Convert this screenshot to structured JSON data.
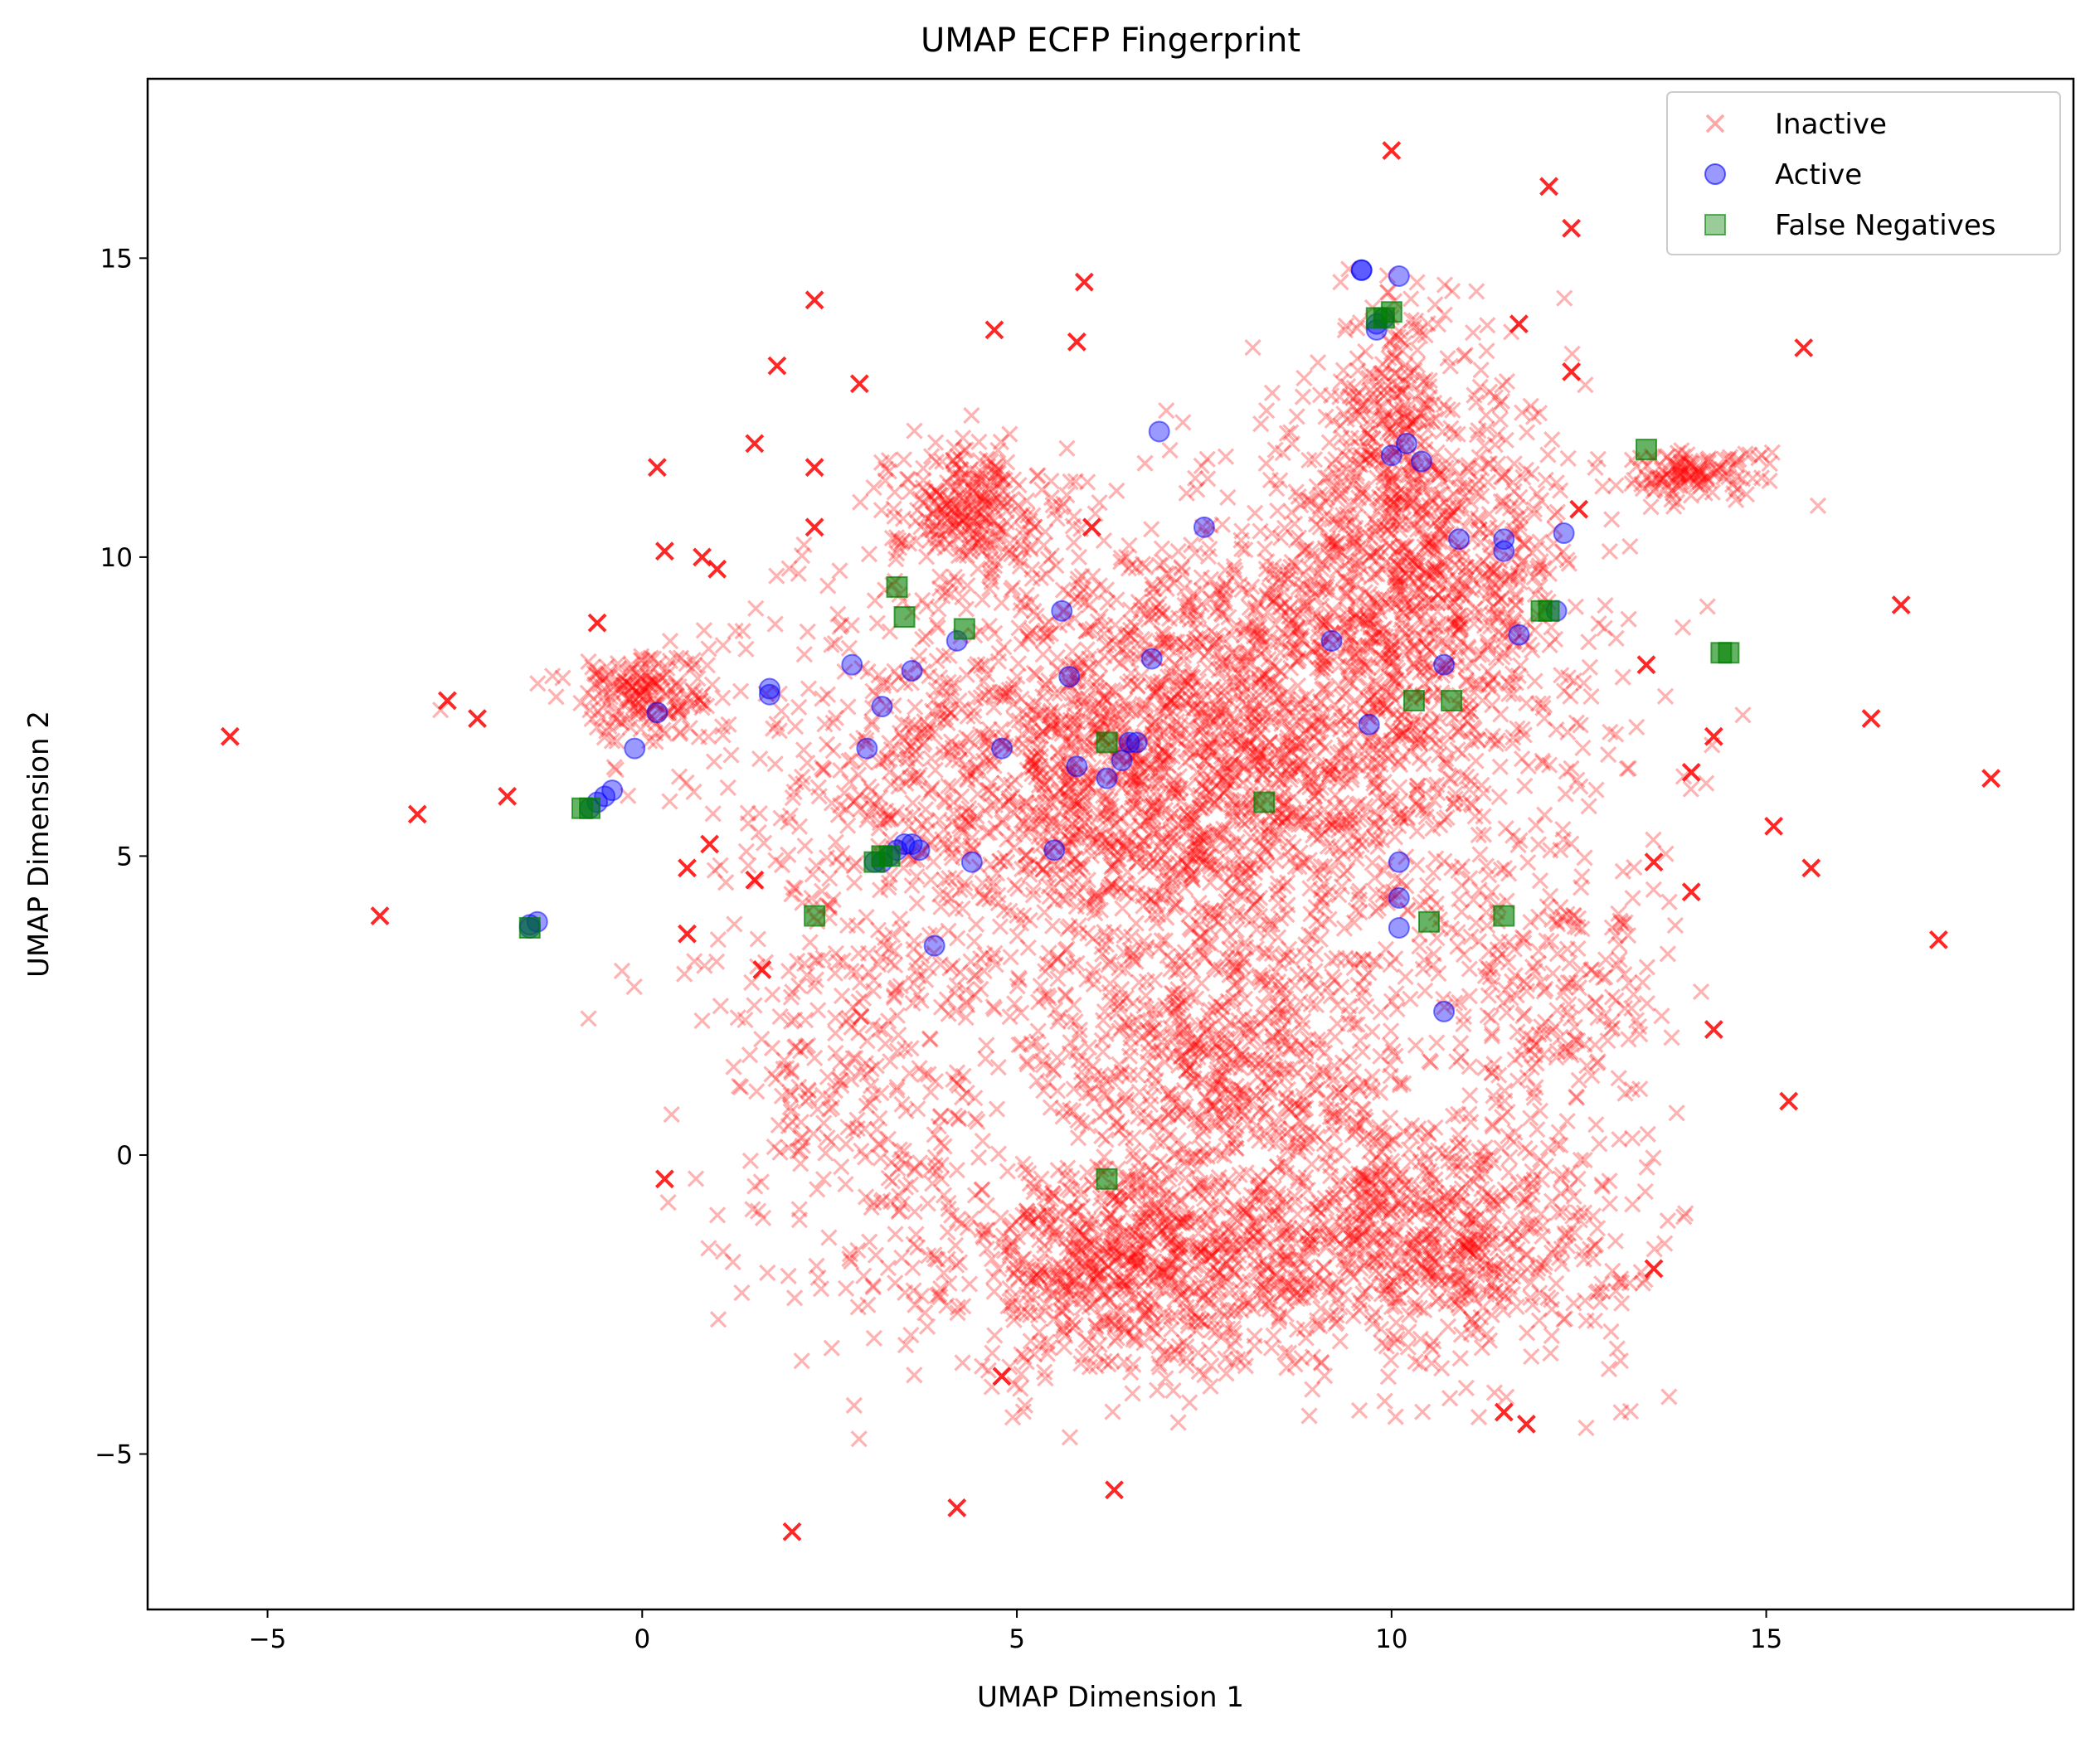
{
  "chart_data": {
    "type": "scatter",
    "title": "UMAP ECFP Fingerprint",
    "xlabel": "UMAP Dimension 1",
    "ylabel": "UMAP Dimension 2",
    "xlim": [
      -6.6,
      19.1
    ],
    "ylim": [
      -7.6,
      18.0
    ],
    "xticks": [
      -5,
      0,
      5,
      10,
      15
    ],
    "yticks": [
      -5,
      0,
      5,
      10,
      15
    ],
    "xtick_labels": [
      "−5",
      "0",
      "5",
      "10",
      "15"
    ],
    "ytick_labels": [
      "−5",
      "0",
      "5",
      "10",
      "15"
    ],
    "grid": false,
    "legend_position": "top-right",
    "series": [
      {
        "name": "Inactive",
        "marker": "x",
        "color": "#ff0000",
        "alpha": 0.3,
        "clusters": [
          {
            "cx": 7.0,
            "cy": 6.5,
            "sx": 2.4,
            "sy": 2.0,
            "n": 2600
          },
          {
            "cx": 10.3,
            "cy": 9.8,
            "sx": 1.1,
            "sy": 1.6,
            "n": 900
          },
          {
            "cx": 6.5,
            "cy": -1.9,
            "sx": 1.1,
            "sy": 0.9,
            "n": 700
          },
          {
            "cx": 10.2,
            "cy": -1.3,
            "sx": 1.5,
            "sy": 1.1,
            "n": 900
          },
          {
            "cx": 4.3,
            "cy": 10.9,
            "sx": 0.5,
            "sy": 0.5,
            "n": 250
          },
          {
            "cx": 0.0,
            "cy": 7.7,
            "sx": 0.5,
            "sy": 0.4,
            "n": 180
          },
          {
            "cx": 14.0,
            "cy": 11.4,
            "sx": 0.5,
            "sy": 0.2,
            "n": 120
          },
          {
            "cx": 7.8,
            "cy": 1.5,
            "sx": 1.2,
            "sy": 1.0,
            "n": 500
          },
          {
            "cx": 3.0,
            "cy": 1.0,
            "sx": 1.0,
            "sy": 2.0,
            "n": 350
          },
          {
            "cx": 12.2,
            "cy": 2.5,
            "sx": 0.8,
            "sy": 1.0,
            "n": 200
          },
          {
            "cx": 10.0,
            "cy": 12.5,
            "sx": 0.4,
            "sy": 1.0,
            "n": 150
          }
        ],
        "outliers": [
          [
            -5.5,
            7.0
          ],
          [
            -3.5,
            4.0
          ],
          [
            -3.0,
            5.7
          ],
          [
            -2.6,
            7.6
          ],
          [
            -2.2,
            7.3
          ],
          [
            -1.8,
            6.0
          ],
          [
            0.3,
            -0.4
          ],
          [
            0.6,
            3.7
          ],
          [
            0.6,
            4.8
          ],
          [
            0.9,
            5.2
          ],
          [
            1.5,
            4.6
          ],
          [
            1.5,
            11.9
          ],
          [
            1.6,
            3.1
          ],
          [
            2.0,
            -6.3
          ],
          [
            1.8,
            13.2
          ],
          [
            2.3,
            14.3
          ],
          [
            2.3,
            11.5
          ],
          [
            2.3,
            10.5
          ],
          [
            2.9,
            12.9
          ],
          [
            4.2,
            -5.9
          ],
          [
            4.7,
            13.8
          ],
          [
            5.8,
            13.6
          ],
          [
            5.9,
            14.6
          ],
          [
            6.0,
            10.5
          ],
          [
            6.3,
            -5.6
          ],
          [
            10.0,
            16.8
          ],
          [
            11.7,
            13.9
          ],
          [
            12.1,
            16.2
          ],
          [
            12.4,
            15.5
          ],
          [
            12.4,
            13.1
          ],
          [
            12.5,
            10.8
          ],
          [
            13.5,
            4.9
          ],
          [
            13.5,
            -1.9
          ],
          [
            14.0,
            6.4
          ],
          [
            14.0,
            4.4
          ],
          [
            14.3,
            7.0
          ],
          [
            15.1,
            5.5
          ],
          [
            15.3,
            0.9
          ],
          [
            15.5,
            13.5
          ],
          [
            15.6,
            4.8
          ],
          [
            16.4,
            7.3
          ],
          [
            16.8,
            9.2
          ],
          [
            17.3,
            3.6
          ],
          [
            18.0,
            6.3
          ],
          [
            11.5,
            -4.3
          ],
          [
            11.8,
            -4.5
          ],
          [
            4.8,
            -3.7
          ],
          [
            13.4,
            8.2
          ],
          [
            14.3,
            2.1
          ],
          [
            1.0,
            9.8
          ],
          [
            0.8,
            10.0
          ],
          [
            -0.6,
            8.9
          ],
          [
            0.2,
            11.5
          ],
          [
            0.3,
            10.1
          ]
        ]
      },
      {
        "name": "Active",
        "marker": "o",
        "color": "#0000ff",
        "alpha": 0.4,
        "points": [
          [
            9.6,
            14.8
          ],
          [
            9.6,
            14.8
          ],
          [
            10.1,
            14.7
          ],
          [
            9.8,
            13.9
          ],
          [
            9.8,
            13.8
          ],
          [
            9.9,
            14.0
          ],
          [
            -1.5,
            3.8
          ],
          [
            -1.4,
            3.9
          ],
          [
            -1.5,
            3.85
          ],
          [
            -0.7,
            5.8
          ],
          [
            -0.6,
            5.9
          ],
          [
            -0.4,
            6.1
          ],
          [
            -0.5,
            6.0
          ],
          [
            -0.1,
            6.8
          ],
          [
            0.2,
            7.4
          ],
          [
            1.7,
            7.8
          ],
          [
            1.7,
            7.7
          ],
          [
            2.8,
            8.2
          ],
          [
            3.0,
            6.8
          ],
          [
            3.2,
            7.5
          ],
          [
            3.6,
            8.1
          ],
          [
            3.1,
            4.9
          ],
          [
            3.3,
            5.0
          ],
          [
            3.5,
            5.2
          ],
          [
            3.4,
            5.1
          ],
          [
            3.6,
            5.2
          ],
          [
            3.7,
            5.1
          ],
          [
            3.2,
            4.9
          ],
          [
            3.9,
            3.5
          ],
          [
            4.2,
            8.6
          ],
          [
            4.4,
            4.9
          ],
          [
            4.8,
            6.8
          ],
          [
            5.5,
            5.1
          ],
          [
            5.6,
            9.1
          ],
          [
            5.7,
            8.0
          ],
          [
            5.8,
            6.5
          ],
          [
            6.2,
            6.3
          ],
          [
            6.4,
            6.6
          ],
          [
            6.5,
            6.9
          ],
          [
            6.6,
            6.9
          ],
          [
            6.8,
            8.3
          ],
          [
            6.9,
            12.1
          ],
          [
            7.5,
            10.5
          ],
          [
            9.2,
            8.6
          ],
          [
            9.7,
            7.2
          ],
          [
            10.0,
            11.7
          ],
          [
            10.1,
            4.9
          ],
          [
            10.1,
            4.3
          ],
          [
            10.1,
            3.8
          ],
          [
            10.2,
            11.9
          ],
          [
            10.4,
            11.6
          ],
          [
            10.7,
            8.2
          ],
          [
            10.7,
            2.4
          ],
          [
            10.9,
            10.3
          ],
          [
            11.5,
            10.1
          ],
          [
            11.5,
            10.3
          ],
          [
            11.7,
            8.7
          ],
          [
            12.3,
            10.4
          ],
          [
            12.2,
            9.1
          ]
        ]
      },
      {
        "name": "False Negatives",
        "marker": "s",
        "color": "#008000",
        "alpha": 0.4,
        "points": [
          [
            -1.5,
            3.8
          ],
          [
            -0.8,
            5.8
          ],
          [
            -0.7,
            5.8
          ],
          [
            2.3,
            4.0
          ],
          [
            3.1,
            4.9
          ],
          [
            3.2,
            5.0
          ],
          [
            3.3,
            5.0
          ],
          [
            3.4,
            9.5
          ],
          [
            3.5,
            9.0
          ],
          [
            4.3,
            8.8
          ],
          [
            6.2,
            6.9
          ],
          [
            6.2,
            -0.4
          ],
          [
            8.3,
            5.9
          ],
          [
            9.8,
            14.0
          ],
          [
            9.9,
            14.0
          ],
          [
            10.0,
            14.1
          ],
          [
            10.3,
            7.6
          ],
          [
            10.5,
            3.9
          ],
          [
            10.8,
            7.6
          ],
          [
            11.5,
            4.0
          ],
          [
            12.0,
            9.1
          ],
          [
            12.1,
            9.1
          ],
          [
            13.4,
            11.8
          ],
          [
            14.5,
            8.4
          ],
          [
            14.4,
            8.4
          ]
        ]
      }
    ]
  }
}
